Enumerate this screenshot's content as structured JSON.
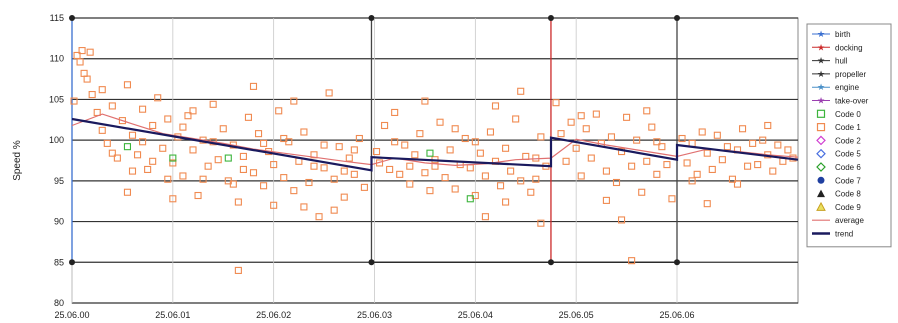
{
  "chart_data": {
    "type": "scatter",
    "ylabel": "Speed %",
    "ylim": [
      80,
      115
    ],
    "yticks": [
      80,
      85,
      90,
      95,
      100,
      105,
      110,
      115
    ],
    "xlim": [
      0,
      7.2
    ],
    "xticks": [
      {
        "x": 0,
        "label": "25.06.00"
      },
      {
        "x": 1,
        "label": "25.06.01"
      },
      {
        "x": 2,
        "label": "25.06.02"
      },
      {
        "x": 3,
        "label": "25.06.03"
      },
      {
        "x": 4,
        "label": "25.06.04"
      },
      {
        "x": 5,
        "label": "25.06.05"
      },
      {
        "x": 6,
        "label": "25.06.06"
      }
    ],
    "grid": true,
    "legend_position": "right",
    "legend": [
      {
        "label": "birth",
        "symbol": "star-line",
        "color": "#3a6fd0"
      },
      {
        "label": "docking",
        "symbol": "star-line",
        "color": "#cc2a2a"
      },
      {
        "label": "hull",
        "symbol": "star-line",
        "color": "#333333"
      },
      {
        "label": "propeller",
        "symbol": "star-line",
        "color": "#333333"
      },
      {
        "label": "engine",
        "symbol": "star-line",
        "color": "#4a90c8"
      },
      {
        "label": "take-over",
        "symbol": "star-line",
        "color": "#9b3fb0"
      },
      {
        "label": "Code 0",
        "symbol": "square-open",
        "color": "#3cb43c"
      },
      {
        "label": "Code 1",
        "symbol": "square-open",
        "color": "#f08a50"
      },
      {
        "label": "Code 2",
        "symbol": "diamond",
        "color": "#d040d0"
      },
      {
        "label": "Code 5",
        "symbol": "diamond",
        "color": "#4a70e0"
      },
      {
        "label": "Code 6",
        "symbol": "diamond",
        "color": "#2aa02a"
      },
      {
        "label": "Code 7",
        "symbol": "circle",
        "color": "#1f3fa0"
      },
      {
        "label": "Code 8",
        "symbol": "triangle",
        "color": "#222222"
      },
      {
        "label": "Code 9",
        "symbol": "triangle-open",
        "color": "#c8a020"
      },
      {
        "label": "average",
        "symbol": "line",
        "color": "#e07070"
      },
      {
        "label": "trend",
        "symbol": "line-thick",
        "color": "#1a1a5e"
      }
    ],
    "event_lines": [
      {
        "name": "birth",
        "x": 0.0,
        "color": "#3a6fd0"
      },
      {
        "name": "hull",
        "x": 2.97,
        "color": "#444444"
      },
      {
        "name": "docking",
        "x": 4.75,
        "color": "#cc2a2a"
      },
      {
        "name": "propeller",
        "x": 6.0,
        "color": "#444444"
      }
    ],
    "trend": [
      {
        "segment": [
          [
            0.0,
            102.6
          ],
          [
            2.97,
            96.3
          ]
        ]
      },
      {
        "segment": [
          [
            2.97,
            97.9
          ],
          [
            4.75,
            96.8
          ]
        ]
      },
      {
        "segment": [
          [
            4.75,
            100.3
          ],
          [
            6.0,
            97.6
          ]
        ]
      },
      {
        "segment": [
          [
            6.0,
            99.4
          ],
          [
            7.2,
            97.6
          ]
        ]
      }
    ],
    "average": [
      [
        0.0,
        101.8
      ],
      [
        0.3,
        103.2
      ],
      [
        0.6,
        102.0
      ],
      [
        0.9,
        100.8
      ],
      [
        1.2,
        100.2
      ],
      [
        1.5,
        99.6
      ],
      [
        1.8,
        98.9
      ],
      [
        2.1,
        98.4
      ],
      [
        2.4,
        97.9
      ],
      [
        2.7,
        97.4
      ],
      [
        2.97,
        97.0
      ],
      [
        3.2,
        97.8
      ],
      [
        3.5,
        97.2
      ],
      [
        3.8,
        96.9
      ],
      [
        4.1,
        97.1
      ],
      [
        4.4,
        97.6
      ],
      [
        4.75,
        97.8
      ],
      [
        5.0,
        100.1
      ],
      [
        5.3,
        99.4
      ],
      [
        5.6,
        98.8
      ],
      [
        6.0,
        98.0
      ],
      [
        6.3,
        98.9
      ],
      [
        6.6,
        98.6
      ],
      [
        6.9,
        98.2
      ],
      [
        7.2,
        97.9
      ]
    ],
    "series": [
      {
        "name": "Code 1",
        "marker": "square-open",
        "color": "#f08a50",
        "points": [
          [
            0.02,
            104.8
          ],
          [
            0.05,
            110.4
          ],
          [
            0.08,
            109.6
          ],
          [
            0.1,
            111.0
          ],
          [
            0.12,
            108.2
          ],
          [
            0.15,
            107.5
          ],
          [
            0.18,
            110.8
          ],
          [
            0.2,
            105.6
          ],
          [
            0.25,
            103.4
          ],
          [
            0.3,
            101.2
          ],
          [
            0.35,
            99.6
          ],
          [
            0.4,
            104.2
          ],
          [
            0.45,
            97.8
          ],
          [
            0.5,
            102.4
          ],
          [
            0.55,
            106.8
          ],
          [
            0.6,
            100.6
          ],
          [
            0.65,
            98.2
          ],
          [
            0.7,
            103.8
          ],
          [
            0.75,
            96.4
          ],
          [
            0.8,
            101.8
          ],
          [
            0.85,
            105.2
          ],
          [
            0.9,
            99.0
          ],
          [
            0.95,
            102.6
          ],
          [
            1.0,
            97.2
          ],
          [
            1.05,
            100.4
          ],
          [
            1.1,
            95.6
          ],
          [
            1.15,
            103.0
          ],
          [
            1.2,
            98.8
          ],
          [
            1.25,
            93.2
          ],
          [
            1.3,
            100.0
          ],
          [
            1.35,
            96.8
          ],
          [
            1.4,
            104.4
          ],
          [
            1.45,
            97.6
          ],
          [
            1.5,
            101.4
          ],
          [
            1.55,
            95.0
          ],
          [
            1.6,
            99.4
          ],
          [
            1.65,
            92.4
          ],
          [
            1.7,
            98.0
          ],
          [
            1.75,
            102.8
          ],
          [
            1.8,
            96.0
          ],
          [
            1.85,
            100.8
          ],
          [
            1.9,
            94.4
          ],
          [
            1.95,
            98.6
          ],
          [
            2.0,
            97.0
          ],
          [
            2.05,
            103.6
          ],
          [
            2.1,
            95.4
          ],
          [
            2.15,
            99.8
          ],
          [
            2.2,
            93.8
          ],
          [
            2.25,
            97.4
          ],
          [
            2.3,
            101.0
          ],
          [
            2.35,
            94.8
          ],
          [
            2.4,
            98.2
          ],
          [
            2.45,
            90.6
          ],
          [
            2.5,
            96.6
          ],
          [
            2.55,
            105.8
          ],
          [
            2.6,
            95.2
          ],
          [
            2.65,
            99.2
          ],
          [
            2.7,
            93.0
          ],
          [
            2.75,
            97.8
          ],
          [
            2.8,
            95.8
          ],
          [
            2.85,
            100.2
          ],
          [
            2.9,
            94.2
          ],
          [
            0.4,
            98.4
          ],
          [
            0.6,
            96.2
          ],
          [
            0.8,
            97.4
          ],
          [
            1.0,
            92.8
          ],
          [
            1.2,
            103.6
          ],
          [
            1.4,
            99.8
          ],
          [
            1.6,
            94.6
          ],
          [
            1.8,
            106.6
          ],
          [
            2.0,
            92.0
          ],
          [
            2.2,
            104.8
          ],
          [
            2.4,
            96.8
          ],
          [
            2.6,
            91.4
          ],
          [
            2.8,
            98.8
          ],
          [
            0.3,
            106.2
          ],
          [
            0.7,
            99.8
          ],
          [
            1.1,
            101.6
          ],
          [
            1.3,
            95.2
          ],
          [
            1.7,
            96.4
          ],
          [
            1.9,
            99.6
          ],
          [
            2.1,
            100.2
          ],
          [
            2.3,
            91.8
          ],
          [
            2.5,
            99.4
          ],
          [
            2.7,
            96.2
          ],
          [
            1.65,
            84.0
          ],
          [
            0.55,
            93.6
          ],
          [
            0.95,
            95.2
          ],
          [
            3.02,
            98.6
          ],
          [
            3.05,
            97.2
          ],
          [
            3.1,
            101.8
          ],
          [
            3.15,
            96.4
          ],
          [
            3.2,
            103.4
          ],
          [
            3.25,
            95.8
          ],
          [
            3.3,
            99.4
          ],
          [
            3.35,
            94.6
          ],
          [
            3.4,
            98.2
          ],
          [
            3.45,
            100.8
          ],
          [
            3.5,
            96.0
          ],
          [
            3.55,
            93.8
          ],
          [
            3.6,
            97.6
          ],
          [
            3.65,
            102.2
          ],
          [
            3.7,
            95.4
          ],
          [
            3.75,
            98.8
          ],
          [
            3.8,
            94.0
          ],
          [
            3.85,
            97.0
          ],
          [
            3.9,
            100.2
          ],
          [
            3.95,
            96.6
          ],
          [
            4.0,
            93.2
          ],
          [
            4.05,
            98.4
          ],
          [
            4.1,
            95.6
          ],
          [
            4.15,
            101.0
          ],
          [
            4.2,
            97.4
          ],
          [
            4.25,
            94.4
          ],
          [
            4.3,
            99.0
          ],
          [
            4.35,
            96.2
          ],
          [
            4.4,
            102.6
          ],
          [
            4.45,
            95.0
          ],
          [
            4.5,
            98.0
          ],
          [
            4.55,
            93.6
          ],
          [
            4.6,
            97.8
          ],
          [
            4.65,
            100.4
          ],
          [
            4.7,
            96.8
          ],
          [
            4.45,
            106.0
          ],
          [
            4.1,
            90.6
          ],
          [
            3.5,
            104.8
          ],
          [
            3.2,
            99.8
          ],
          [
            3.8,
            101.4
          ],
          [
            4.3,
            92.4
          ],
          [
            4.6,
            95.2
          ],
          [
            3.6,
            96.8
          ],
          [
            4.0,
            99.8
          ],
          [
            4.2,
            104.2
          ],
          [
            3.35,
            96.8
          ],
          [
            4.65,
            89.8
          ],
          [
            4.8,
            104.6
          ],
          [
            4.85,
            100.8
          ],
          [
            4.9,
            97.4
          ],
          [
            4.95,
            102.2
          ],
          [
            5.0,
            99.0
          ],
          [
            5.05,
            95.6
          ],
          [
            5.1,
            101.4
          ],
          [
            5.15,
            97.8
          ],
          [
            5.2,
            103.2
          ],
          [
            5.25,
            99.6
          ],
          [
            5.3,
            96.2
          ],
          [
            5.35,
            100.4
          ],
          [
            5.4,
            94.8
          ],
          [
            5.45,
            98.6
          ],
          [
            5.5,
            102.8
          ],
          [
            5.55,
            96.8
          ],
          [
            5.6,
            100.0
          ],
          [
            5.65,
            93.6
          ],
          [
            5.7,
            97.4
          ],
          [
            5.75,
            101.6
          ],
          [
            5.8,
            95.8
          ],
          [
            5.85,
            99.2
          ],
          [
            5.9,
            97.0
          ],
          [
            5.95,
            92.8
          ],
          [
            5.55,
            85.2
          ],
          [
            5.45,
            90.2
          ],
          [
            5.3,
            92.6
          ],
          [
            5.7,
            103.6
          ],
          [
            5.05,
            103.0
          ],
          [
            5.8,
            99.8
          ],
          [
            6.05,
            100.2
          ],
          [
            6.1,
            97.2
          ],
          [
            6.15,
            99.6
          ],
          [
            6.2,
            95.8
          ],
          [
            6.25,
            101.0
          ],
          [
            6.3,
            98.4
          ],
          [
            6.35,
            96.4
          ],
          [
            6.4,
            100.6
          ],
          [
            6.45,
            97.6
          ],
          [
            6.5,
            99.2
          ],
          [
            6.55,
            95.2
          ],
          [
            6.6,
            98.8
          ],
          [
            6.65,
            101.4
          ],
          [
            6.7,
            96.8
          ],
          [
            6.75,
            99.6
          ],
          [
            6.8,
            97.0
          ],
          [
            6.85,
            100.0
          ],
          [
            6.9,
            98.2
          ],
          [
            6.95,
            96.2
          ],
          [
            7.0,
            99.4
          ],
          [
            7.05,
            97.4
          ],
          [
            7.1,
            98.8
          ],
          [
            7.15,
            97.8
          ],
          [
            6.3,
            92.2
          ],
          [
            6.15,
            95.0
          ],
          [
            6.6,
            94.6
          ],
          [
            6.9,
            101.8
          ]
        ]
      },
      {
        "name": "Code 0",
        "marker": "square-open",
        "color": "#3cb43c",
        "points": [
          [
            0.55,
            99.2
          ],
          [
            1.0,
            97.8
          ],
          [
            1.55,
            97.8
          ],
          [
            3.55,
            98.4
          ],
          [
            3.95,
            92.8
          ]
        ]
      }
    ]
  }
}
